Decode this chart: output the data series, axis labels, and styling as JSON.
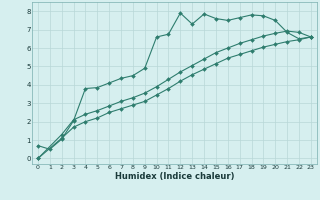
{
  "xlabel": "Humidex (Indice chaleur)",
  "line_color": "#2e7d6e",
  "marker": "D",
  "marker_size": 2.0,
  "background_color": "#d6efef",
  "grid_color": "#b8d8d8",
  "xlim": [
    -0.5,
    23.5
  ],
  "ylim": [
    -0.3,
    8.5
  ],
  "xticks": [
    0,
    1,
    2,
    3,
    4,
    5,
    6,
    7,
    8,
    9,
    10,
    11,
    12,
    13,
    14,
    15,
    16,
    17,
    18,
    19,
    20,
    21,
    22,
    23
  ],
  "yticks": [
    0,
    1,
    2,
    3,
    4,
    5,
    6,
    7,
    8
  ],
  "line1_x": [
    0,
    1,
    2,
    3,
    4,
    5,
    6,
    7,
    8,
    9,
    10,
    11,
    12,
    13,
    14,
    15,
    16,
    17,
    18,
    19,
    20,
    21,
    22,
    23
  ],
  "line1_y": [
    0.7,
    0.5,
    1.05,
    2.05,
    3.8,
    3.85,
    4.1,
    4.35,
    4.5,
    4.9,
    6.6,
    6.75,
    7.9,
    7.3,
    7.85,
    7.6,
    7.5,
    7.65,
    7.8,
    7.75,
    7.5,
    6.85,
    6.5,
    6.6
  ],
  "line2_x": [
    0,
    2,
    3,
    4,
    5,
    6,
    7,
    8,
    9,
    10,
    11,
    12,
    13,
    14,
    15,
    16,
    17,
    18,
    19,
    20,
    21,
    22,
    23
  ],
  "line2_y": [
    0.0,
    1.1,
    1.7,
    2.0,
    2.2,
    2.5,
    2.7,
    2.9,
    3.1,
    3.45,
    3.8,
    4.2,
    4.55,
    4.85,
    5.15,
    5.45,
    5.65,
    5.85,
    6.05,
    6.2,
    6.35,
    6.45,
    6.6
  ],
  "line3_x": [
    0,
    2,
    3,
    4,
    5,
    6,
    7,
    8,
    9,
    10,
    11,
    12,
    13,
    14,
    15,
    16,
    17,
    18,
    19,
    20,
    21,
    22,
    23
  ],
  "line3_y": [
    0.0,
    1.3,
    2.1,
    2.4,
    2.6,
    2.85,
    3.1,
    3.3,
    3.55,
    3.9,
    4.3,
    4.7,
    5.05,
    5.4,
    5.75,
    6.0,
    6.25,
    6.45,
    6.65,
    6.8,
    6.92,
    6.85,
    6.6
  ]
}
